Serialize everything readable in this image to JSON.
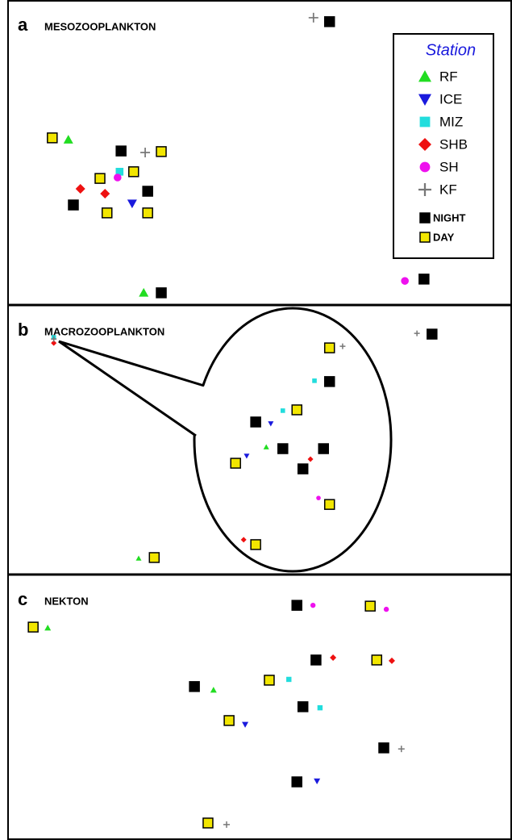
{
  "chart_data": [
    {
      "type": "scatter",
      "panel_label": "a",
      "title": "MESOZOOPLANKTON",
      "xlim": [
        0,
        100
      ],
      "ylim": [
        0,
        100
      ],
      "marker_size": 12,
      "legend": true,
      "legend_title": "Station",
      "series": [
        {
          "name": "RF",
          "marker": "triangle",
          "color": "#22dd22",
          "x": [
            12.0,
            27.0
          ],
          "y": [
            54.2,
            4.0
          ]
        },
        {
          "name": "ICE",
          "marker": "triangle-down",
          "color": "#1a1add",
          "x": [
            24.7
          ],
          "y": [
            33.3
          ]
        },
        {
          "name": "MIZ",
          "marker": "square",
          "color": "#22dddd",
          "x": [
            22.2
          ],
          "y": [
            43.7
          ]
        },
        {
          "name": "SHB",
          "marker": "diamond",
          "color": "#ee1111",
          "x": [
            14.4,
            19.3
          ],
          "y": [
            38.1,
            36.5
          ]
        },
        {
          "name": "SH",
          "marker": "circle",
          "color": "#ee11ee",
          "x": [
            21.8,
            79.0
          ],
          "y": [
            41.8,
            7.9
          ]
        },
        {
          "name": "KF",
          "marker": "plus",
          "color": "#777777",
          "x": [
            60.8,
            27.3
          ],
          "y": [
            94.2,
            50.0
          ]
        },
        {
          "name": "NIGHT",
          "marker": "box",
          "color": "#000000",
          "x": [
            64.0,
            22.5,
            27.8,
            13.0,
            30.5,
            82.8
          ],
          "y": [
            92.9,
            50.5,
            37.3,
            32.8,
            4.0,
            8.5
          ]
        },
        {
          "name": "DAY",
          "marker": "box",
          "color": "#f2e600",
          "x": [
            8.8,
            30.5,
            25.0,
            18.3,
            19.7,
            27.8
          ],
          "y": [
            54.8,
            50.3,
            43.7,
            41.5,
            30.2,
            30.2
          ]
        }
      ]
    },
    {
      "type": "scatter",
      "panel_label": "b",
      "title": "MACROZOOPLANKTON",
      "xlim": [
        0,
        100
      ],
      "ylim": [
        0,
        100
      ],
      "marker_size": 7,
      "series": [
        {
          "marker": "triangle",
          "color": "#22dd22",
          "x": [
            51.4,
            26.0
          ],
          "y": [
            47.3,
            6.0
          ]
        },
        {
          "marker": "triangle-down",
          "color": "#1a1add",
          "x": [
            52.3,
            47.5
          ],
          "y": [
            56.0,
            44.0
          ]
        },
        {
          "marker": "square",
          "color": "#22dddd",
          "x": [
            61.0,
            54.7,
            9.1
          ],
          "y": [
            71.9,
            60.8,
            88.0
          ]
        },
        {
          "marker": "diamond",
          "color": "#ee1111",
          "x": [
            60.2,
            46.9,
            9.1
          ],
          "y": [
            42.8,
            12.9,
            85.9
          ]
        },
        {
          "marker": "circle",
          "color": "#ee11ee",
          "x": [
            61.8
          ],
          "y": [
            28.4
          ]
        },
        {
          "marker": "plus",
          "color": "#777777",
          "x": [
            81.4,
            66.6,
            9.1
          ],
          "y": [
            89.5,
            84.7,
            87.4
          ]
        },
        {
          "marker": "box",
          "color": "#000000",
          "x": [
            84.4,
            64.0,
            49.3,
            54.7,
            62.8,
            58.7
          ],
          "y": [
            89.2,
            71.6,
            56.6,
            46.7,
            46.7,
            39.2
          ]
        },
        {
          "marker": "box",
          "color": "#f2e600",
          "x": [
            64.0,
            57.5,
            45.3,
            64.0,
            49.3,
            29.1
          ],
          "y": [
            84.1,
            61.1,
            41.3,
            26.0,
            11.1,
            6.3
          ]
        }
      ]
    },
    {
      "type": "scatter",
      "panel_label": "c",
      "title": "NEKTON",
      "xlim": [
        0,
        100
      ],
      "ylim": [
        0,
        100
      ],
      "marker_size": 8,
      "series": [
        {
          "marker": "triangle",
          "color": "#22dd22",
          "x": [
            7.9,
            40.9
          ],
          "y": [
            79.9,
            56.5
          ]
        },
        {
          "marker": "triangle-down",
          "color": "#1a1add",
          "x": [
            47.2,
            61.5
          ],
          "y": [
            43.5,
            22.2
          ]
        },
        {
          "marker": "square",
          "color": "#22dddd",
          "x": [
            55.9,
            62.1
          ],
          "y": [
            60.5,
            49.8
          ]
        },
        {
          "marker": "diamond",
          "color": "#ee1111",
          "x": [
            64.7,
            76.4
          ],
          "y": [
            68.7,
            67.5
          ]
        },
        {
          "marker": "circle",
          "color": "#ee11ee",
          "x": [
            60.7,
            75.3
          ],
          "y": [
            88.4,
            86.9
          ]
        },
        {
          "marker": "plus",
          "color": "#777777",
          "x": [
            78.3,
            43.5
          ],
          "y": [
            34.3,
            5.8
          ]
        },
        {
          "marker": "box",
          "color": "#000000",
          "x": [
            57.5,
            61.3,
            37.1,
            58.7,
            74.8,
            57.5
          ],
          "y": [
            88.4,
            67.8,
            57.8,
            50.2,
            34.7,
            21.9
          ]
        },
        {
          "marker": "box",
          "color": "#f2e600",
          "x": [
            5.0,
            72.1,
            73.4,
            52.0,
            44.0,
            39.8
          ],
          "y": [
            80.2,
            88.1,
            67.8,
            60.2,
            45.0,
            6.4
          ]
        }
      ]
    }
  ]
}
